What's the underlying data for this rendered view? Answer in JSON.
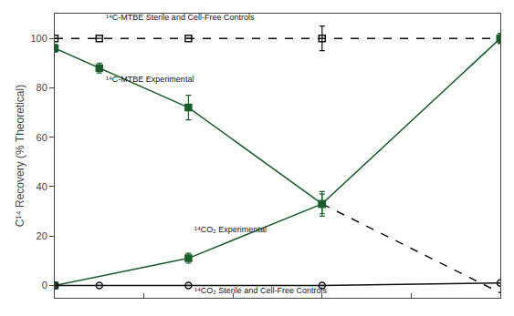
{
  "chart_data": {
    "type": "scatter",
    "ylabel": "C¹⁴ Recovery (% Theoretical)",
    "xlim": [
      0,
      5
    ],
    "ylim": [
      -5,
      110
    ],
    "xticks": [
      0,
      1,
      2,
      3,
      4,
      5
    ],
    "yticks": [
      0,
      20,
      40,
      60,
      80,
      100
    ],
    "tick_labels": "y",
    "grid": false,
    "series": [
      {
        "x": [
          0,
          0.5,
          1.5,
          3.0,
          5.0
        ],
        "values": [
          100,
          100,
          100,
          100,
          100
        ],
        "errors": [
          0,
          0,
          0,
          5,
          2
        ],
        "color": "#111111",
        "marker": "square_open",
        "line_style": "dashed"
      },
      {
        "x": [
          0,
          0.5,
          1.5,
          3.0
        ],
        "values": [
          96,
          88,
          72,
          33
        ],
        "errors": [
          1.5,
          2,
          5,
          4
        ],
        "color": "#1a5c2a",
        "marker": "square",
        "line_style": "solid"
      },
      {
        "x": [
          3.0,
          5.0
        ],
        "values": [
          33,
          -3
        ],
        "color": "#111111",
        "marker": "none",
        "line_style": "dashed"
      },
      {
        "x": [
          0,
          1.5,
          3.0,
          5.0
        ],
        "values": [
          0,
          11,
          33,
          100
        ],
        "errors": [
          0,
          2,
          5,
          2
        ],
        "color": "#1a5c2a",
        "marker": "square",
        "line_style": "solid"
      },
      {
        "x": [
          0,
          0.5,
          1.5,
          3.0,
          5.0
        ],
        "values": [
          0,
          0,
          0,
          0,
          1
        ],
        "errors": [
          0,
          0,
          0,
          0,
          0
        ],
        "color": "#111111",
        "marker": "circle_open",
        "line_style": "solid"
      }
    ],
    "annotations": [
      {
        "text": "¹⁴C-MTBE Sterile and Cell-Free Controls",
        "x": 0.55,
        "y": 106
      },
      {
        "text": "¹⁴C-MTBE Experimental",
        "x": 0.55,
        "y": 81
      },
      {
        "text": "¹⁴CO₂ Experimental",
        "x": 1.55,
        "y": 20
      },
      {
        "text": "¹⁴CO₂ Sterile and Cell-Free Controls",
        "x": 1.55,
        "y": -4.5
      }
    ]
  }
}
